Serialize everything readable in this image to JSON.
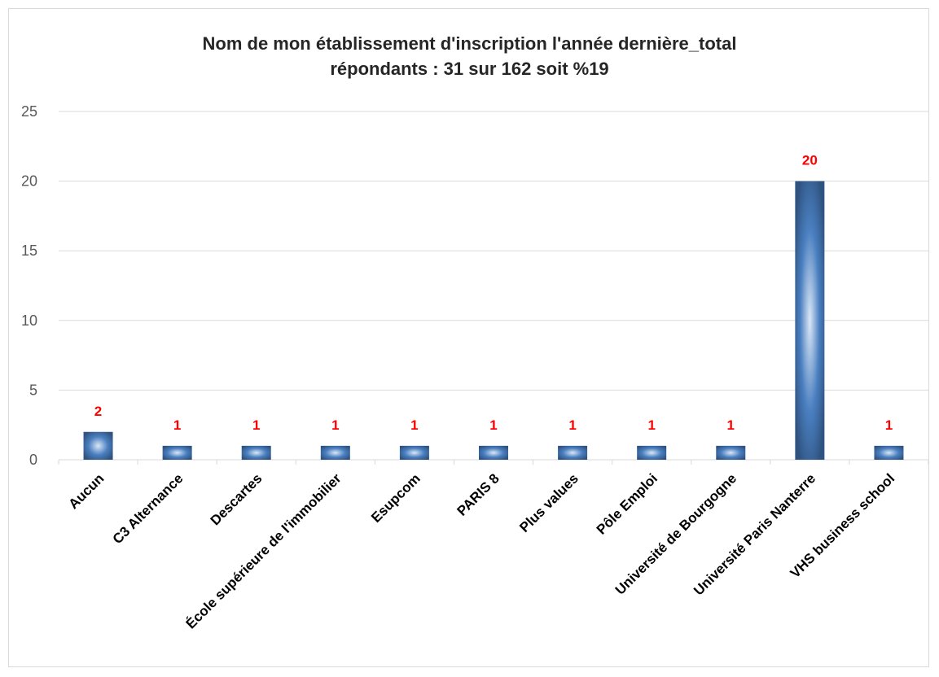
{
  "colors": {
    "label": "#ff0000",
    "grid": "#d9d9d9",
    "bar_dark": "#2f5380",
    "bar_mid": "#4a7fc0",
    "bar_light": "#dbe7f6"
  },
  "chart_data": {
    "type": "bar",
    "title_line1": "Nom de mon établissement d'inscription l'année dernière_total",
    "title_line2": "répondants : 31 sur 162 soit %19",
    "categories": [
      "Aucun",
      "C3 Alternance",
      "Descartes",
      "École supérieure de l'immobilier",
      "Esupcom",
      "PARIS 8",
      "Plus values",
      "Pôle Emploi",
      "Université de Bourgogne",
      "Université Paris Nanterre",
      "VHS business school"
    ],
    "values": [
      2,
      1,
      1,
      1,
      1,
      1,
      1,
      1,
      1,
      20,
      1
    ],
    "ylim": [
      0,
      25
    ],
    "yticks": [
      0,
      5,
      10,
      15,
      20,
      25
    ],
    "grid": true,
    "legend": "none",
    "data_labels": true
  }
}
